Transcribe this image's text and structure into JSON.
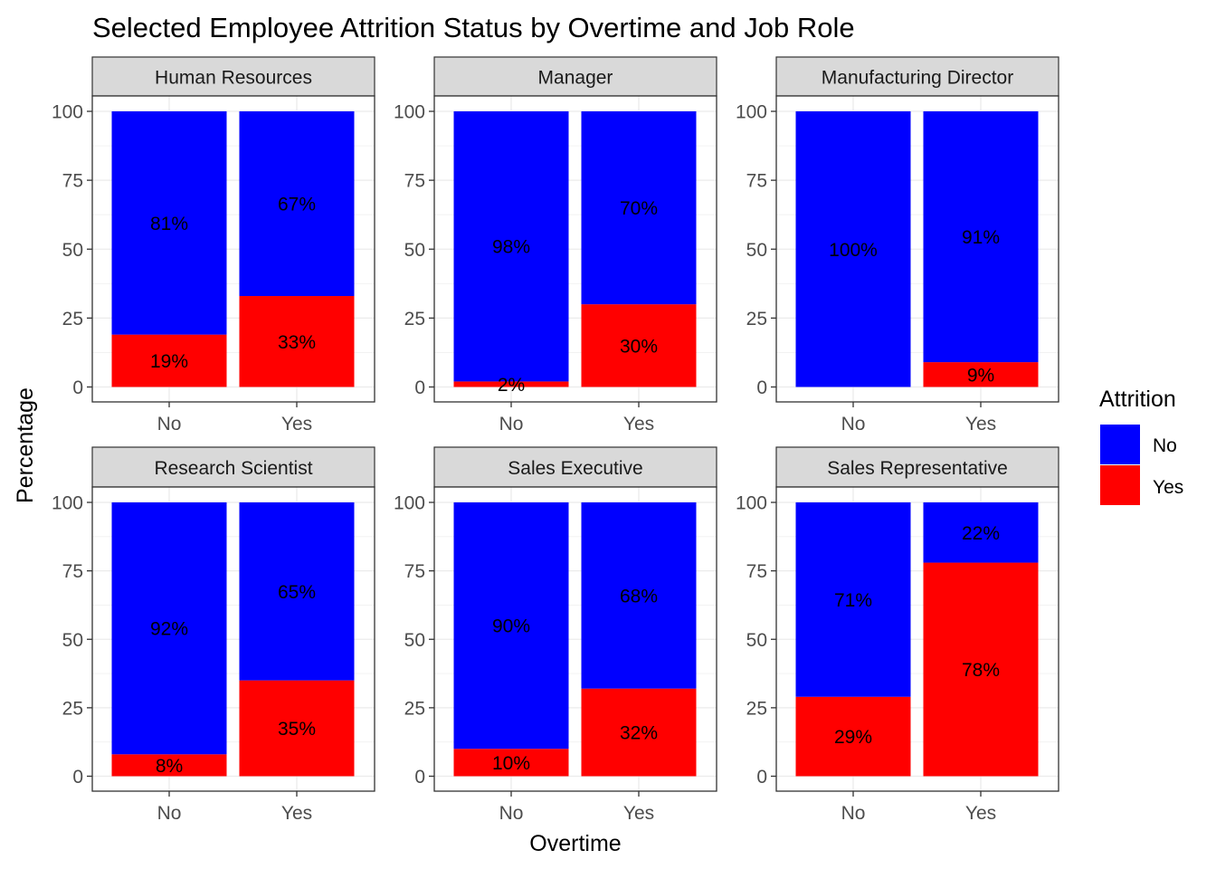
{
  "colors": {
    "No": "#0000ff",
    "Yes": "#ff0000"
  },
  "chart_data": {
    "type": "bar",
    "stacked": true,
    "title": "Selected Employee Attrition Status by Overtime and Job Role",
    "xlabel": "Overtime",
    "ylabel": "Percentage",
    "ylim": [
      0,
      100
    ],
    "yticks": [
      "0",
      "25",
      "50",
      "75",
      "100"
    ],
    "categories": [
      "No",
      "Yes"
    ],
    "legend": {
      "title": "Attrition",
      "position": "right",
      "entries": [
        "No",
        "Yes"
      ]
    },
    "grid": true,
    "panels": [
      {
        "name": "Human Resources",
        "series": [
          {
            "name": "Yes",
            "values": [
              19,
              33
            ],
            "labels": [
              "19%",
              "33%"
            ]
          },
          {
            "name": "No",
            "values": [
              81,
              67
            ],
            "labels": [
              "81%",
              "67%"
            ]
          }
        ]
      },
      {
        "name": "Manager",
        "series": [
          {
            "name": "Yes",
            "values": [
              2,
              30
            ],
            "labels": [
              "2%",
              "30%"
            ]
          },
          {
            "name": "No",
            "values": [
              98,
              70
            ],
            "labels": [
              "98%",
              "70%"
            ]
          }
        ]
      },
      {
        "name": "Manufacturing Director",
        "series": [
          {
            "name": "Yes",
            "values": [
              0,
              9
            ],
            "labels": [
              "",
              "9%"
            ]
          },
          {
            "name": "No",
            "values": [
              100,
              91
            ],
            "labels": [
              "100%",
              "91%"
            ]
          }
        ]
      },
      {
        "name": "Research Scientist",
        "series": [
          {
            "name": "Yes",
            "values": [
              8,
              35
            ],
            "labels": [
              "8%",
              "35%"
            ]
          },
          {
            "name": "No",
            "values": [
              92,
              65
            ],
            "labels": [
              "92%",
              "65%"
            ]
          }
        ]
      },
      {
        "name": "Sales Executive",
        "series": [
          {
            "name": "Yes",
            "values": [
              10,
              32
            ],
            "labels": [
              "10%",
              "32%"
            ]
          },
          {
            "name": "No",
            "values": [
              90,
              68
            ],
            "labels": [
              "90%",
              "68%"
            ]
          }
        ]
      },
      {
        "name": "Sales Representative",
        "series": [
          {
            "name": "Yes",
            "values": [
              29,
              78
            ],
            "labels": [
              "29%",
              "78%"
            ]
          },
          {
            "name": "No",
            "values": [
              71,
              22
            ],
            "labels": [
              "71%",
              "22%"
            ]
          }
        ]
      }
    ]
  }
}
